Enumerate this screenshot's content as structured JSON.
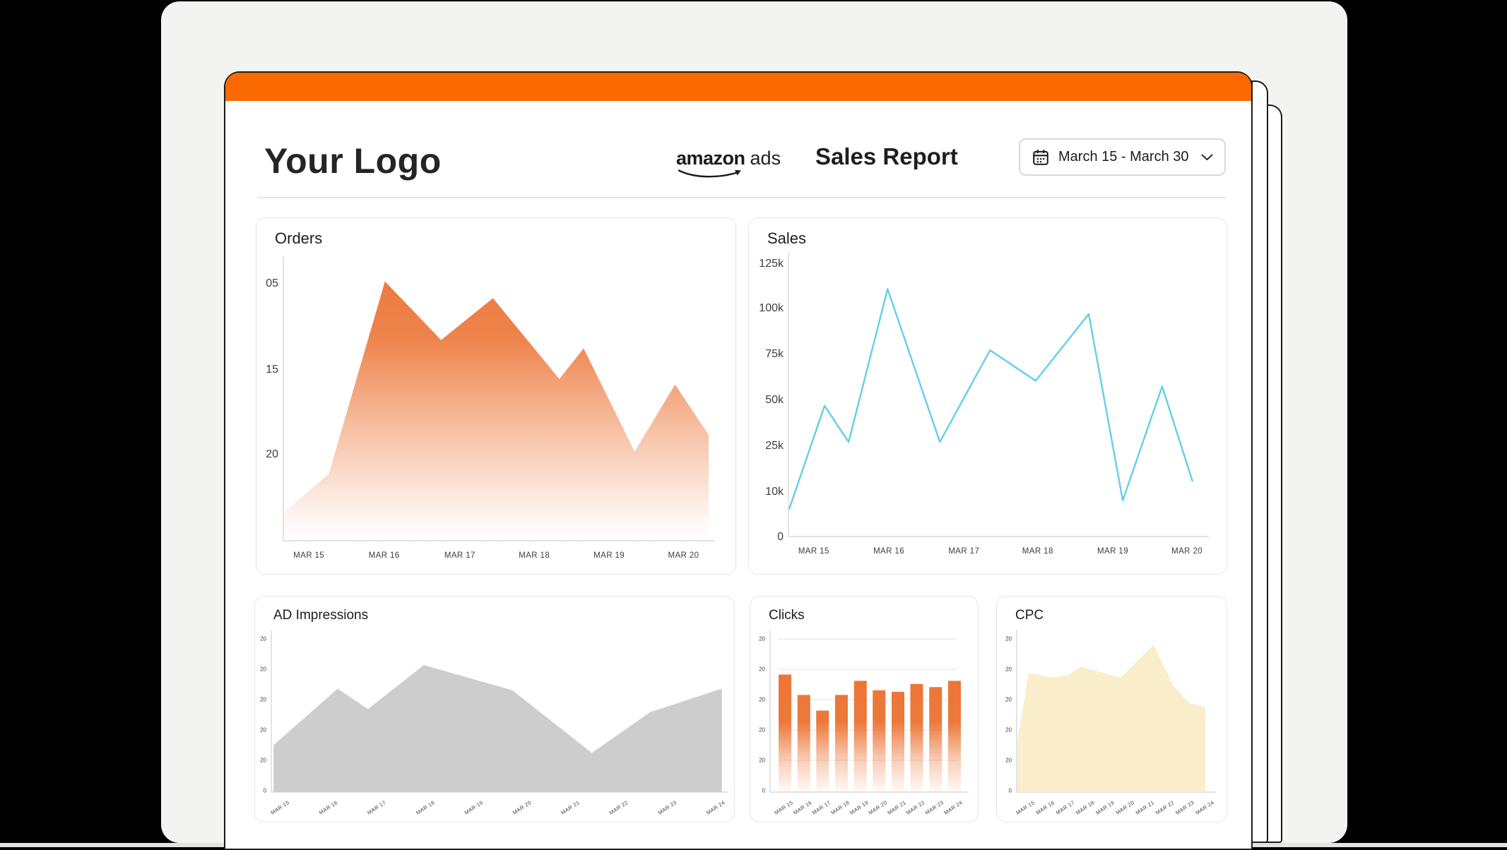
{
  "header": {
    "logo_text": "Your Logo",
    "brand_amazon": "amazon",
    "brand_ads": "ads",
    "report_title": "Sales Report",
    "date_range": "March 15 - March 30"
  },
  "icons": [
    "calendar-icon",
    "chevron-down-icon",
    "amazon-smile-icon"
  ],
  "colors": {
    "accent_bar": "#FB6A00",
    "orders_orange": "#EC7434",
    "sales_blue": "#64CEE9",
    "impressions_gray": "#CDCDCD",
    "cpc_cream": "#FAEDCA"
  },
  "chart_data": [
    {
      "id": "orders",
      "title": "Orders",
      "type": "area",
      "color": "#EC7434",
      "fade": true,
      "ylim_note": "axis shows placeholder ticks",
      "yticks": [
        {
          "label": "05",
          "f": 0.076
        },
        {
          "label": "15",
          "f": 0.385
        },
        {
          "label": "20",
          "f": 0.689
        }
      ],
      "xticks": [
        {
          "label": "MAR 15",
          "f": 0.06
        },
        {
          "label": "MAR 16",
          "f": 0.237
        },
        {
          "label": "MAR 17",
          "f": 0.415
        },
        {
          "label": "MAR 18",
          "f": 0.59
        },
        {
          "label": "MAR 19",
          "f": 0.766
        },
        {
          "label": "MAR 20",
          "f": 0.941
        }
      ],
      "points": [
        {
          "x": 0.0,
          "v": 10
        },
        {
          "x": 0.107,
          "v": 24
        },
        {
          "x": 0.239,
          "v": 93
        },
        {
          "x": 0.371,
          "v": 72
        },
        {
          "x": 0.493,
          "v": 87
        },
        {
          "x": 0.649,
          "v": 58
        },
        {
          "x": 0.706,
          "v": 69
        },
        {
          "x": 0.826,
          "v": 32
        },
        {
          "x": 0.921,
          "v": 56
        },
        {
          "x": 1.0,
          "v": 38
        }
      ]
    },
    {
      "id": "sales",
      "title": "Sales",
      "type": "line",
      "color": "#64CEE9",
      "yticks": [
        {
          "label": "125k",
          "f": 0.018
        },
        {
          "label": "100k",
          "f": 0.178
        },
        {
          "label": "75k",
          "f": 0.343
        },
        {
          "label": "50k",
          "f": 0.508
        },
        {
          "label": "25k",
          "f": 0.673
        },
        {
          "label": "10k",
          "f": 0.838
        },
        {
          "label": "0",
          "f": 1.0
        }
      ],
      "xticks": [
        {
          "label": "MAR 15",
          "f": 0.061
        },
        {
          "label": "MAR 16",
          "f": 0.242
        },
        {
          "label": "MAR 17",
          "f": 0.423
        },
        {
          "label": "MAR 18",
          "f": 0.601
        },
        {
          "label": "MAR 19",
          "f": 0.782
        },
        {
          "label": "MAR 20",
          "f": 0.961
        }
      ],
      "points": [
        {
          "x": 0.002,
          "v": 10
        },
        {
          "x": 0.087,
          "v": 47
        },
        {
          "x": 0.145,
          "v": 34
        },
        {
          "x": 0.239,
          "v": 89
        },
        {
          "x": 0.365,
          "v": 34
        },
        {
          "x": 0.486,
          "v": 67
        },
        {
          "x": 0.596,
          "v": 56
        },
        {
          "x": 0.724,
          "v": 80
        },
        {
          "x": 0.806,
          "v": 13
        },
        {
          "x": 0.901,
          "v": 54
        },
        {
          "x": 0.974,
          "v": 20
        }
      ],
      "approx_values": [
        "6k",
        "47k",
        "27k",
        "110k",
        "27k",
        "77k",
        "59k",
        "97k",
        "8k",
        "57k",
        "13k"
      ]
    },
    {
      "id": "impressions",
      "title": "AD Impressions",
      "type": "area",
      "color": "#CDCDCD",
      "fade": false,
      "yticks": [
        {
          "label": "20",
          "f": 0.023
        },
        {
          "label": "20",
          "f": 0.216
        },
        {
          "label": "20",
          "f": 0.41
        },
        {
          "label": "20",
          "f": 0.604
        },
        {
          "label": "20",
          "f": 0.797
        },
        {
          "label": "0",
          "f": 0.991
        }
      ],
      "xticks": [
        {
          "label": "MAR 15",
          "f": 0.022
        },
        {
          "label": "MAR 16",
          "f": 0.129
        },
        {
          "label": "MAR 17",
          "f": 0.236
        },
        {
          "label": "MAR 18",
          "f": 0.344
        },
        {
          "label": "MAR 19",
          "f": 0.451
        },
        {
          "label": "MAR 20",
          "f": 0.558
        },
        {
          "label": "MAR 21",
          "f": 0.665
        },
        {
          "label": "MAR 22",
          "f": 0.772
        },
        {
          "label": "MAR 23",
          "f": 0.88
        },
        {
          "label": "MAR 24",
          "f": 0.987
        }
      ],
      "points": [
        {
          "x": 0.005,
          "v": 30
        },
        {
          "x": 0.147,
          "v": 66
        },
        {
          "x": 0.214,
          "v": 53
        },
        {
          "x": 0.338,
          "v": 81
        },
        {
          "x": 0.534,
          "v": 65
        },
        {
          "x": 0.71,
          "v": 25
        },
        {
          "x": 0.839,
          "v": 51
        },
        {
          "x": 0.998,
          "v": 66
        }
      ]
    },
    {
      "id": "clicks",
      "title": "Clicks",
      "type": "bar",
      "color": "#EC7434",
      "fade": true,
      "grid": true,
      "yticks": [
        {
          "label": "20",
          "f": 0.023
        },
        {
          "label": "20",
          "f": 0.216
        },
        {
          "label": "20",
          "f": 0.41
        },
        {
          "label": "20",
          "f": 0.604
        },
        {
          "label": "20",
          "f": 0.797
        },
        {
          "label": "0",
          "f": 0.991
        }
      ],
      "xticks": [
        {
          "label": "MAR 15",
          "f": 0.077
        },
        {
          "label": "MAR 16",
          "f": 0.175
        },
        {
          "label": "MAR 17",
          "f": 0.272
        },
        {
          "label": "MAR 18",
          "f": 0.37
        },
        {
          "label": "MAR 19",
          "f": 0.468
        },
        {
          "label": "MAR 20",
          "f": 0.565
        },
        {
          "label": "MAR 21",
          "f": 0.663
        },
        {
          "label": "MAR 22",
          "f": 0.76
        },
        {
          "label": "MAR 23",
          "f": 0.858
        },
        {
          "label": "MAR 24",
          "f": 0.956
        }
      ],
      "values": [
        75,
        62,
        52,
        62,
        71,
        65,
        64,
        69,
        67,
        71
      ]
    },
    {
      "id": "cpc",
      "title": "CPC",
      "type": "area",
      "color": "#FAEDCA",
      "fade": false,
      "yticks": [
        {
          "label": "20",
          "f": 0.023
        },
        {
          "label": "20",
          "f": 0.216
        },
        {
          "label": "20",
          "f": 0.41
        },
        {
          "label": "20",
          "f": 0.604
        },
        {
          "label": "20",
          "f": 0.797
        },
        {
          "label": "0",
          "f": 0.991
        }
      ],
      "xticks": [
        {
          "label": "MAR 15",
          "f": 0.051
        },
        {
          "label": "MAR 16",
          "f": 0.154
        },
        {
          "label": "MAR 17",
          "f": 0.257
        },
        {
          "label": "MAR 18",
          "f": 0.36
        },
        {
          "label": "MAR 19",
          "f": 0.463
        },
        {
          "label": "MAR 20",
          "f": 0.566
        },
        {
          "label": "MAR 21",
          "f": 0.669
        },
        {
          "label": "MAR 22",
          "f": 0.772
        },
        {
          "label": "MAR 23",
          "f": 0.875
        },
        {
          "label": "MAR 24",
          "f": 0.978
        }
      ],
      "points": [
        {
          "x": 0.004,
          "v": 33
        },
        {
          "x": 0.062,
          "v": 76
        },
        {
          "x": 0.19,
          "v": 73
        },
        {
          "x": 0.27,
          "v": 75
        },
        {
          "x": 0.332,
          "v": 80
        },
        {
          "x": 0.536,
          "v": 73
        },
        {
          "x": 0.708,
          "v": 94
        },
        {
          "x": 0.807,
          "v": 68
        },
        {
          "x": 0.89,
          "v": 57
        },
        {
          "x": 0.974,
          "v": 54
        }
      ]
    }
  ]
}
